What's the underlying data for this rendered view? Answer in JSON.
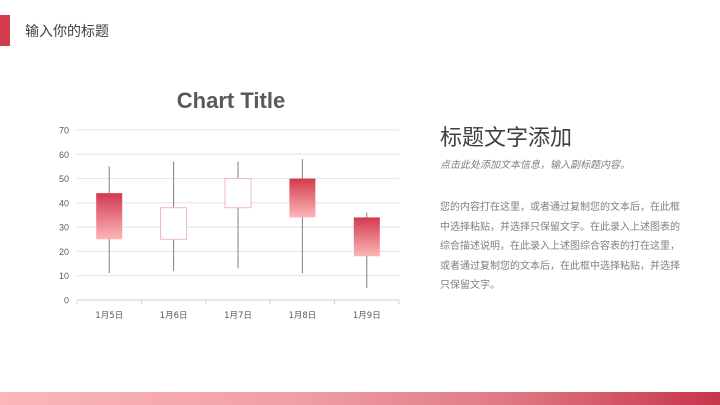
{
  "header": {
    "title": "输入你的标题",
    "accent_color": "#d23a4e"
  },
  "chart_data": {
    "type": "candlestick",
    "title": "Chart Title",
    "categories": [
      "1月5日",
      "1月6日",
      "1月7日",
      "1月8日",
      "1月9日"
    ],
    "series": [
      {
        "open": 44,
        "high": 55,
        "low": 11,
        "close": 25
      },
      {
        "open": 25,
        "high": 57,
        "low": 12,
        "close": 38
      },
      {
        "open": 38,
        "high": 57,
        "low": 13,
        "close": 50
      },
      {
        "open": 50,
        "high": 58,
        "low": 11,
        "close": 34
      },
      {
        "open": 34,
        "high": 36,
        "low": 5,
        "close": 18
      }
    ],
    "ylim": [
      0,
      70
    ],
    "yticks": [
      0,
      10,
      20,
      30,
      40,
      50,
      60,
      70
    ],
    "grid": true,
    "colors": {
      "down_top": "#d23a4e",
      "down_bottom": "#fcb6b8",
      "up_border": "#f4b6ba",
      "wick": "#7f7f7f"
    }
  },
  "side": {
    "title": "标题文字添加",
    "subtitle": "点击此处添加文本信息，输入副标题内容。",
    "body": "您的内容打在这里，或者通过复制您的文本后，在此框中选择粘贴，并选择只保留文字。在此录入上述图表的综合描述说明，在此录入上述图综合容表的打在这里，或者通过复制您的文本后，在此框中选择粘贴，并选择只保留文字。"
  }
}
